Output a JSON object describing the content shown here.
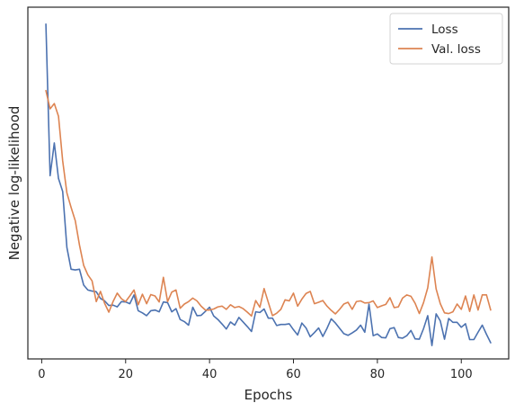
{
  "chart_data": {
    "type": "line",
    "title": "",
    "xlabel": "Epochs",
    "ylabel": "Negative log-likelihood",
    "xlim": [
      -3.3,
      111.3
    ],
    "ylim": [
      0,
      100
    ],
    "xticks": [
      0,
      20,
      40,
      60,
      80,
      100
    ],
    "xtick_labels": [
      "0",
      "20",
      "40",
      "60",
      "80",
      "100"
    ],
    "yticks": [],
    "grid": false,
    "legend_position": "top-right",
    "series": [
      {
        "name": "Loss",
        "color": "#4c72b0",
        "x": [
          1,
          2,
          3,
          4,
          5,
          6,
          7,
          8,
          9,
          10,
          11,
          12,
          13,
          14,
          15,
          16,
          17,
          18,
          19,
          20,
          21,
          22,
          23,
          24,
          25,
          26,
          27,
          28,
          29,
          30,
          31,
          32,
          33,
          34,
          35,
          36,
          37,
          38,
          39,
          40,
          41,
          42,
          43,
          44,
          45,
          46,
          47,
          48,
          49,
          50,
          51,
          52,
          53,
          54,
          55,
          56,
          57,
          58,
          59,
          60,
          61,
          62,
          63,
          64,
          65,
          66,
          67,
          68,
          69,
          70,
          71,
          72,
          73,
          74,
          75,
          76,
          77,
          78,
          79,
          80,
          81,
          82,
          83,
          84,
          85,
          86,
          87,
          88,
          89,
          90,
          91,
          92,
          93,
          94,
          95,
          96,
          97,
          98,
          99,
          100,
          101,
          102,
          103,
          104,
          105,
          106,
          107
        ],
        "values": [
          95.2,
          52.1,
          61.4,
          51.3,
          47.6,
          31.7,
          25.5,
          25.3,
          25.5,
          21.0,
          19.6,
          19.3,
          19.1,
          17.2,
          16.5,
          15.2,
          15.3,
          14.8,
          16.3,
          16.2,
          15.7,
          18.2,
          13.7,
          13.1,
          12.3,
          13.7,
          13.9,
          13.4,
          16.2,
          16.0,
          13.4,
          14.3,
          11.2,
          10.6,
          9.6,
          14.7,
          12.3,
          12.4,
          13.5,
          14.7,
          12.2,
          11.2,
          9.9,
          8.5,
          10.5,
          9.6,
          11.8,
          10.5,
          9.2,
          7.8,
          13.4,
          13.2,
          14.2,
          11.6,
          11.6,
          9.5,
          9.8,
          9.8,
          10.0,
          8.3,
          6.8,
          10.2,
          8.8,
          6.3,
          7.5,
          8.8,
          6.4,
          8.7,
          11.4,
          10.2,
          8.7,
          7.2,
          6.7,
          7.4,
          8.2,
          9.6,
          7.6,
          15.6,
          6.6,
          7.1,
          6.1,
          6.0,
          8.6,
          8.9,
          6.1,
          5.9,
          6.6,
          8.1,
          5.7,
          5.6,
          8.6,
          12.3,
          3.8,
          12.8,
          10.8,
          5.6,
          11.5,
          10.4,
          10.4,
          9.0,
          10.0,
          5.5,
          5.5,
          7.6,
          9.6,
          7.0,
          4.6
        ]
      },
      {
        "name": "Val. loss",
        "color": "#dd8452",
        "x": [
          1,
          2,
          3,
          4,
          5,
          6,
          7,
          8,
          9,
          10,
          11,
          12,
          13,
          14,
          15,
          16,
          17,
          18,
          19,
          20,
          21,
          22,
          23,
          24,
          25,
          26,
          27,
          28,
          29,
          30,
          31,
          32,
          33,
          34,
          35,
          36,
          37,
          38,
          39,
          40,
          41,
          42,
          43,
          44,
          45,
          46,
          47,
          48,
          49,
          50,
          51,
          52,
          53,
          54,
          55,
          56,
          57,
          58,
          59,
          60,
          61,
          62,
          63,
          64,
          65,
          66,
          67,
          68,
          69,
          70,
          71,
          72,
          73,
          74,
          75,
          76,
          77,
          78,
          79,
          80,
          81,
          82,
          83,
          84,
          85,
          86,
          87,
          88,
          89,
          90,
          91,
          92,
          93,
          94,
          95,
          96,
          97,
          98,
          99,
          100,
          101,
          102,
          103,
          104,
          105,
          106,
          107
        ],
        "values": [
          76.3,
          71.1,
          72.6,
          69.0,
          56.3,
          47.2,
          43.1,
          39.3,
          32.4,
          26.6,
          23.9,
          22.2,
          16.3,
          19.2,
          15.8,
          13.3,
          16.3,
          18.7,
          17.1,
          16.3,
          17.9,
          19.6,
          15.4,
          18.4,
          15.7,
          18.3,
          17.9,
          16.2,
          23.2,
          16.3,
          19.0,
          19.6,
          14.4,
          15.6,
          16.3,
          17.3,
          16.5,
          15.0,
          13.9,
          13.9,
          14.2,
          14.8,
          15.0,
          14.1,
          15.4,
          14.6,
          14.9,
          14.3,
          13.3,
          12.2,
          16.6,
          14.7,
          20.0,
          16.1,
          12.3,
          13.0,
          14.1,
          16.8,
          16.5,
          18.7,
          15.0,
          17.0,
          18.6,
          19.2,
          15.7,
          16.1,
          16.6,
          15.0,
          13.8,
          12.8,
          14.1,
          15.6,
          16.1,
          14.1,
          16.3,
          16.5,
          15.9,
          16.0,
          16.5,
          14.6,
          15.1,
          15.5,
          17.4,
          14.6,
          14.8,
          17.3,
          18.2,
          17.8,
          15.8,
          12.9,
          16.0,
          20.2,
          29.0,
          19.9,
          15.7,
          13.1,
          12.9,
          13.4,
          15.6,
          14.1,
          17.9,
          13.5,
          18.2,
          13.9,
          18.2,
          18.2,
          13.9
        ]
      }
    ]
  }
}
